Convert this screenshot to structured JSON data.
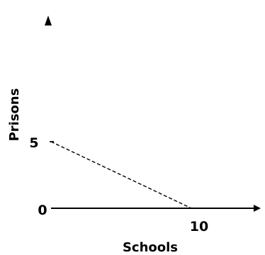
{
  "chart_data": {
    "type": "line",
    "xlabel": "Schools",
    "ylabel": "Prisons",
    "x_ticks": [
      {
        "value": 0,
        "label": "0"
      },
      {
        "value": 10,
        "label": "10"
      }
    ],
    "y_ticks": [
      {
        "value": 0,
        "label": "0"
      },
      {
        "value": 5,
        "label": "5"
      }
    ],
    "x": [
      0,
      10
    ],
    "values": [
      5,
      0
    ],
    "xlim": [
      0,
      10
    ],
    "ylim": [
      0,
      5
    ],
    "grid": false,
    "line_style": "dashed",
    "line_color": "#000000"
  }
}
